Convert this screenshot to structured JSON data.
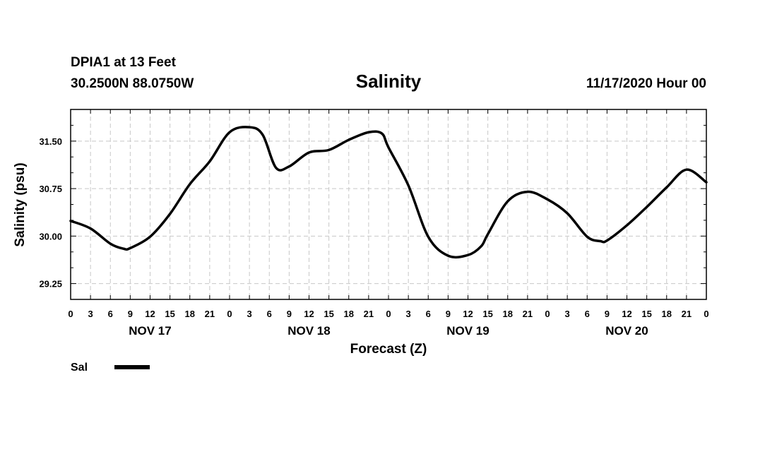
{
  "header": {
    "station": "DPIA1 at 13 Feet",
    "coords": "30.2500N 88.0750W",
    "run": "11/17/2020 Hour 00"
  },
  "chart_data": {
    "type": "line",
    "title": "Salinity",
    "xlabel": "Forecast (Z)",
    "ylabel": "Salinity (psu)",
    "x_tick_labels": [
      "0",
      "3",
      "6",
      "9",
      "12",
      "15",
      "18",
      "21",
      "0",
      "3",
      "6",
      "9",
      "12",
      "15",
      "18",
      "21",
      "0",
      "3",
      "6",
      "9",
      "12",
      "15",
      "18",
      "21",
      "0",
      "3",
      "6",
      "9",
      "12",
      "15",
      "18",
      "21",
      "0"
    ],
    "x_day_labels": [
      {
        "label": "NOV 17",
        "center_hour": 12
      },
      {
        "label": "NOV 18",
        "center_hour": 36
      },
      {
        "label": "NOV 19",
        "center_hour": 60
      },
      {
        "label": "NOV 20",
        "center_hour": 84
      }
    ],
    "x_unit": "forecast hour from 11/17/2020 00Z",
    "xlim": [
      0,
      96
    ],
    "y_ticks": [
      29.25,
      30.0,
      30.75,
      31.5
    ],
    "y_tick_labels": [
      "29.25",
      "30.00",
      "30.75",
      "31.50"
    ],
    "ylim": [
      29.0,
      32.0
    ],
    "grid": true,
    "legend_position": "bottom-left",
    "series": [
      {
        "name": "Sal",
        "color": "#000000",
        "x": [
          0,
          3,
          6,
          8,
          9,
          12,
          15,
          18,
          21,
          24,
          27,
          29,
          31,
          33,
          36,
          39,
          42,
          45,
          47,
          48,
          51,
          54,
          57,
          60,
          62,
          63,
          66,
          69,
          72,
          75,
          78,
          80,
          81,
          84,
          87,
          90,
          93,
          96
        ],
        "values": [
          30.24,
          30.12,
          29.88,
          29.8,
          29.81,
          29.99,
          30.35,
          30.82,
          31.18,
          31.64,
          31.72,
          31.6,
          31.08,
          31.1,
          31.32,
          31.36,
          31.52,
          31.64,
          31.62,
          31.4,
          30.8,
          29.99,
          29.69,
          29.7,
          29.84,
          30.03,
          30.55,
          30.7,
          30.58,
          30.36,
          29.99,
          29.92,
          29.93,
          30.17,
          30.46,
          30.77,
          31.05,
          30.85
        ]
      }
    ]
  }
}
